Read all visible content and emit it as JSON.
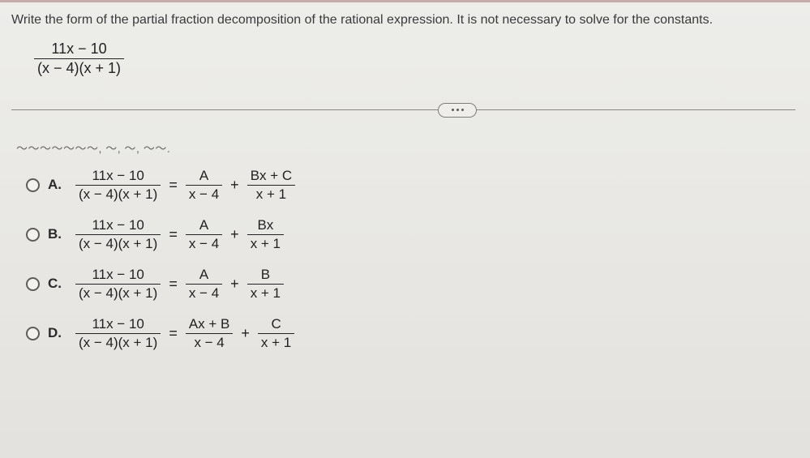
{
  "instructions": "Write the form of the partial fraction decomposition of the rational expression. It is not necessary to solve for the constants.",
  "main_expression": {
    "numerator": "11x − 10",
    "denominator": "(x − 4)(x + 1)"
  },
  "truncated_text": "～～～～～～～, ～, ～, ～～.",
  "pill_label": "...",
  "options": [
    {
      "label": "A.",
      "lhs": {
        "num": "11x − 10",
        "den": "(x − 4)(x + 1)"
      },
      "terms": [
        {
          "num": "A",
          "den": "x − 4"
        },
        {
          "num": "Bx + C",
          "den": "x + 1"
        }
      ]
    },
    {
      "label": "B.",
      "lhs": {
        "num": "11x − 10",
        "den": "(x − 4)(x + 1)"
      },
      "terms": [
        {
          "num": "A",
          "den": "x − 4"
        },
        {
          "num": "Bx",
          "den": "x + 1"
        }
      ]
    },
    {
      "label": "C.",
      "lhs": {
        "num": "11x − 10",
        "den": "(x − 4)(x + 1)"
      },
      "terms": [
        {
          "num": "A",
          "den": "x − 4"
        },
        {
          "num": "B",
          "den": "x + 1"
        }
      ]
    },
    {
      "label": "D.",
      "lhs": {
        "num": "11x − 10",
        "den": "(x − 4)(x + 1)"
      },
      "terms": [
        {
          "num": "Ax + B",
          "den": "x − 4"
        },
        {
          "num": "C",
          "den": "x + 1"
        }
      ]
    }
  ]
}
